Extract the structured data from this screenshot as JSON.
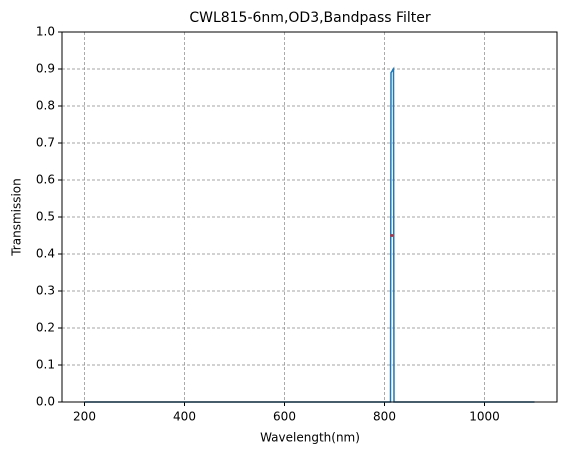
{
  "chart_data": {
    "type": "line",
    "title": "CWL815-6nm,OD3,Bandpass Filter",
    "xlabel": "Wavelength(nm)",
    "ylabel": "Transmission",
    "x": [
      200,
      812,
      813,
      818,
      819,
      1100
    ],
    "series": [
      {
        "color": "#1f77b4",
        "values": [
          0,
          0,
          0.89,
          0.9,
          0,
          0
        ]
      }
    ],
    "marker": {
      "x": 815,
      "y": 0.45,
      "color": "#d62728"
    },
    "xlim": [
      155,
      1145
    ],
    "xticks": [
      200,
      400,
      600,
      800,
      1000
    ],
    "ylim": [
      0,
      1
    ],
    "yticks": [
      {
        "value": 0,
        "label": "0.0"
      },
      0.1,
      0.2,
      0.3,
      0.4,
      0.5,
      0.6,
      0.7,
      0.8,
      0.9,
      {
        "value": 1,
        "label": "1.0"
      }
    ],
    "grid": true
  }
}
